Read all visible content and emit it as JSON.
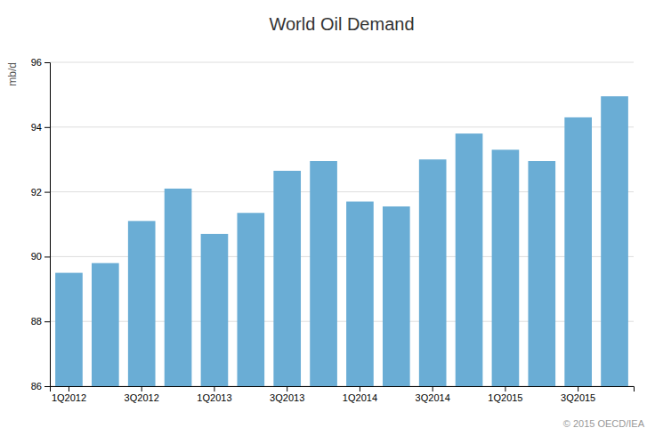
{
  "chart_data": {
    "type": "bar",
    "title": "World Oil Demand",
    "ylabel": "mb/d",
    "categories": [
      "1Q2012",
      null,
      "3Q2012",
      null,
      "1Q2013",
      null,
      "3Q2013",
      null,
      "1Q2014",
      null,
      "3Q2014",
      null,
      "1Q2015",
      null,
      "3Q2015",
      null
    ],
    "values": [
      89.5,
      89.8,
      91.1,
      92.1,
      90.7,
      91.35,
      92.65,
      92.95,
      91.7,
      91.55,
      93.0,
      93.8,
      93.3,
      92.95,
      94.3,
      94.95
    ],
    "color": "#6aadd5",
    "ylim": [
      86,
      96
    ],
    "yticks": [
      86,
      88,
      90,
      92,
      94,
      96
    ],
    "grid": true,
    "annotations": [
      "© 2015 OECD/IEA"
    ]
  }
}
